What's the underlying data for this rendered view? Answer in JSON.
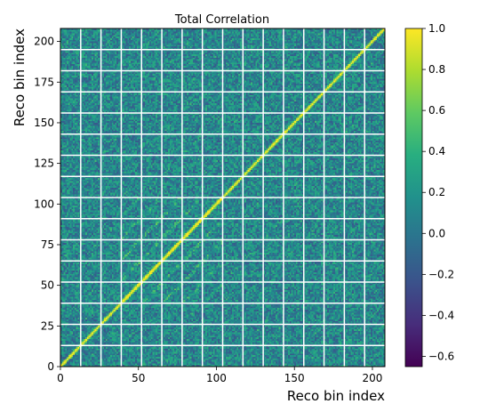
{
  "chart_data": {
    "type": "heatmap",
    "title": "Total Correlation",
    "xlabel": "Reco bin index",
    "ylabel": "Reco bin index",
    "n_bins": 208,
    "xlim": [
      0,
      208
    ],
    "ylim": [
      0,
      208
    ],
    "x_ticks": [
      0,
      50,
      100,
      150,
      200
    ],
    "y_ticks": [
      0,
      25,
      50,
      75,
      100,
      125,
      150,
      175,
      200
    ],
    "block_boundaries": [
      13,
      26,
      39,
      52,
      65,
      78,
      91,
      104,
      117,
      130,
      143,
      156,
      169,
      182,
      195
    ],
    "diagonal_value": 1.0,
    "background_value_range": [
      -0.2,
      0.4
    ],
    "colorbar": {
      "colormap": "viridis",
      "vmin": -0.65,
      "vmax": 1.0,
      "ticks": [
        1.0,
        0.8,
        0.6,
        0.4,
        0.2,
        0.0,
        -0.2,
        -0.4,
        -0.6
      ],
      "tick_labels": [
        "1.0",
        "0.8",
        "0.6",
        "0.4",
        "0.2",
        "0.0",
        "−0.2",
        "−0.4",
        "−0.6"
      ]
    }
  }
}
